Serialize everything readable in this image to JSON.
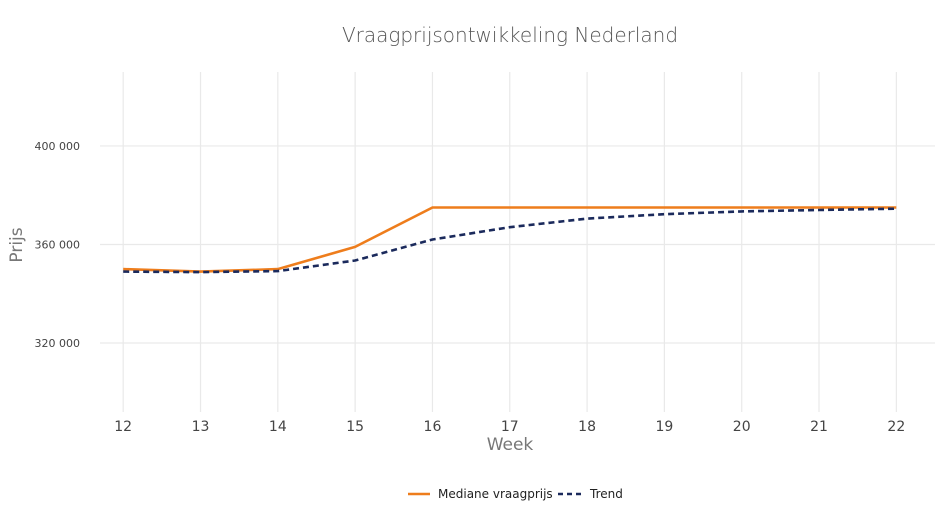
{
  "chart_data": {
    "type": "line",
    "title": "Vraagprijsontwikkeling Nederland",
    "xlabel": "Week",
    "ylabel": "Prijs",
    "x": [
      12,
      13,
      14,
      15,
      16,
      17,
      18,
      19,
      20,
      21,
      22
    ],
    "x_ticks": [
      "12",
      "13",
      "14",
      "15",
      "16",
      "17",
      "18",
      "19",
      "20",
      "21",
      "22"
    ],
    "xlim": [
      11.7,
      22.5
    ],
    "ylim": [
      292000,
      430000
    ],
    "y_ticks": [
      {
        "value": 320000,
        "label": "320 000"
      },
      {
        "value": 360000,
        "label": "360 000"
      },
      {
        "value": 400000,
        "label": "400 000"
      }
    ],
    "grid": true,
    "legend_position": "bottom-center",
    "series": [
      {
        "name": "Mediane vraagprijs",
        "color": "#ee7d1c",
        "style": "solid",
        "values": [
          350000,
          349000,
          350000,
          359000,
          375000,
          375000,
          375000,
          375000,
          375000,
          375000,
          375000
        ]
      },
      {
        "name": "Trend",
        "color": "#1b2a5c",
        "style": "dashed",
        "values": [
          349000,
          348800,
          349200,
          353500,
          362000,
          367000,
          370500,
          372300,
          373400,
          374000,
          374500
        ]
      }
    ]
  }
}
